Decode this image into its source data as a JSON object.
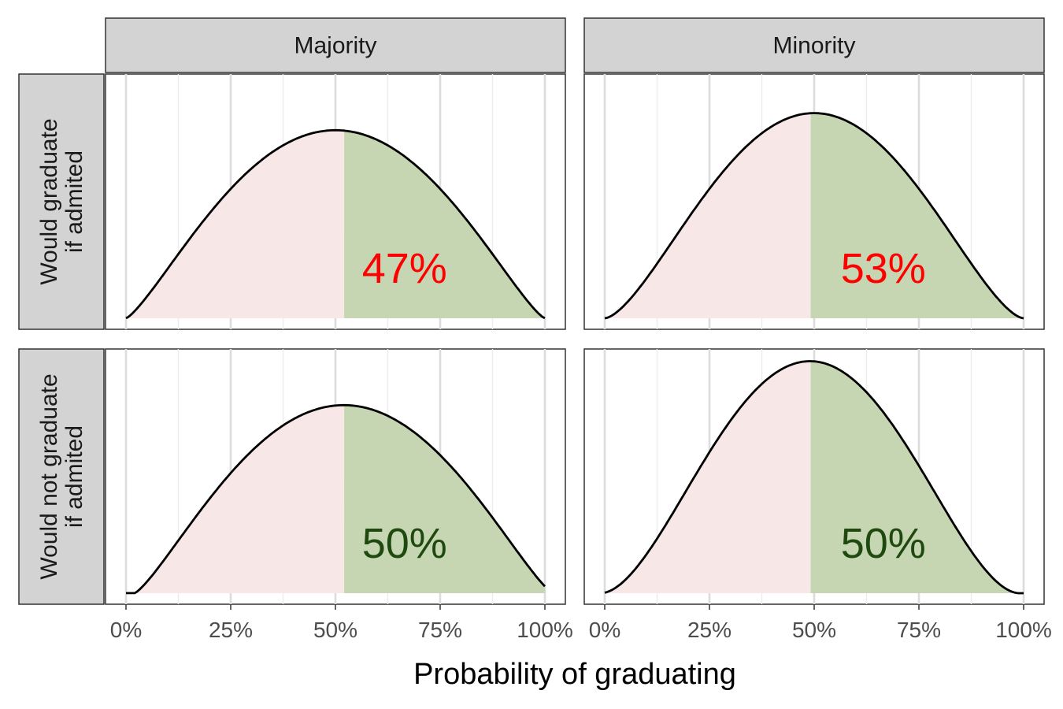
{
  "chart_data": {
    "type": "area",
    "xlabel": "Probability of graduating",
    "x_range": [
      0,
      1
    ],
    "x_ticks": [
      0,
      0.25,
      0.5,
      0.75,
      1
    ],
    "x_tick_labels": [
      "0%",
      "25%",
      "50%",
      "75%",
      "100%"
    ],
    "col_facets": [
      "Majority",
      "Minority"
    ],
    "row_facets": [
      [
        "Would graduate",
        "if admited"
      ],
      [
        "Would not graduate",
        "if admited"
      ]
    ],
    "colors": {
      "below_fill": "#f8e7e7",
      "above_fill": "#c6d6b2",
      "label_red": "#ff0000",
      "label_green": "#1f4a0f"
    },
    "panels": [
      {
        "row": 0,
        "col": 0,
        "mode": 0.5,
        "alpha": 2.3,
        "beta": 2.3,
        "threshold": 0.52,
        "peak_frac": 0.77,
        "label": "47%",
        "label_color": "#ff0000"
      },
      {
        "row": 0,
        "col": 1,
        "mode": 0.5,
        "alpha": 2.6,
        "beta": 2.6,
        "threshold": 0.49,
        "peak_frac": 0.84,
        "label": "53%",
        "label_color": "#ff0000"
      },
      {
        "row": 1,
        "col": 0,
        "mode": 0.52,
        "alpha": 2.3,
        "beta": 2.3,
        "threshold": 0.52,
        "peak_frac": 0.77,
        "label": "50%",
        "label_color": "#1f4a0f"
      },
      {
        "row": 1,
        "col": 1,
        "mode": 0.49,
        "alpha": 2.9,
        "beta": 2.9,
        "threshold": 0.49,
        "peak_frac": 0.95,
        "label": "50%",
        "label_color": "#1f4a0f"
      }
    ]
  }
}
